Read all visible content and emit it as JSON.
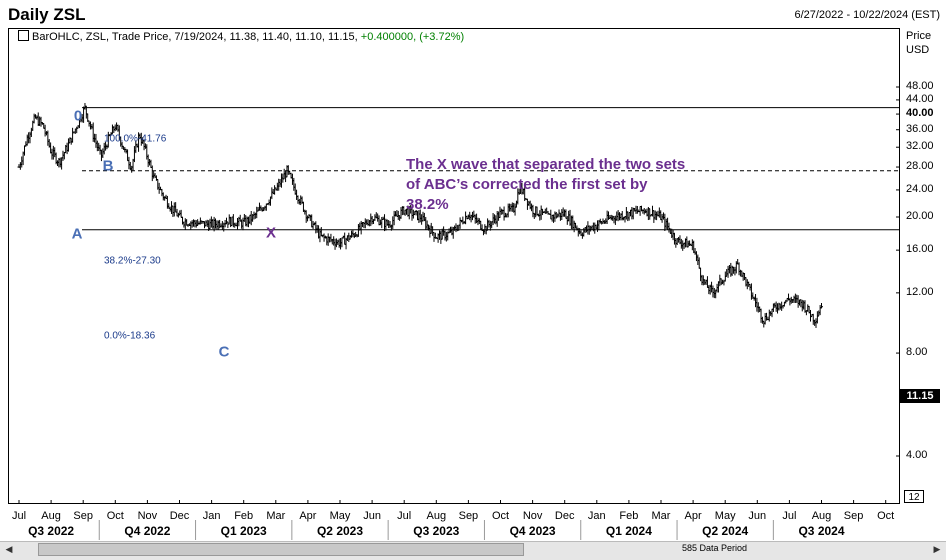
{
  "header": {
    "title": "Daily ZSL",
    "date_range": "6/27/2022 - 10/22/2024 (EST)"
  },
  "legend": {
    "text": "BarOHLC, ZSL, Trade Price, 7/19/2024, 11.38, 11.40, 11.10, 11.15,",
    "change": "+0.400000, (+3.72%)"
  },
  "axis": {
    "unit_line1": "Price",
    "unit_line2": "USD",
    "last_price": "11.15",
    "period_box": "12",
    "data_period": "585 Data Period"
  },
  "annotation": {
    "lines": [
      "The X wave that separated the two sets",
      "of ABC’s corrected the first set by",
      "38.2%"
    ]
  },
  "waves": {
    "zero": "0",
    "a": "A",
    "b": "B",
    "c": "C",
    "x": "X"
  },
  "fib": {
    "level_100": "100.0%-41.76",
    "level_382": "38.2%-27.30",
    "level_0": "0.0%-18.36"
  },
  "colors": {
    "wave_blue": "#4a6fb5",
    "wave_purple": "#6b2f8f",
    "change_green": "#008000"
  },
  "chart_data": {
    "type": "bar",
    "style": "OHLC",
    "symbol": "ZSL",
    "y_scale": "log",
    "ylim": [
      3,
      56
    ],
    "y_ticks": [
      4,
      8,
      12,
      16,
      20,
      24,
      28,
      32,
      36,
      40,
      44,
      48
    ],
    "y_tick_labels": [
      "4.00",
      "8.00",
      "12.00",
      "16.00",
      "20.00",
      "24.00",
      "28.00",
      "32.00",
      "36.00",
      "40.00",
      "44.00",
      "48.00"
    ],
    "x_months": [
      "Jul",
      "Aug",
      "Sep",
      "Oct",
      "Nov",
      "Dec",
      "Jan",
      "Feb",
      "Mar",
      "Apr",
      "May",
      "Jun",
      "Jul",
      "Aug",
      "Sep",
      "Oct",
      "Nov",
      "Dec",
      "Jan",
      "Feb",
      "Mar",
      "Apr",
      "May",
      "Jun",
      "Jul",
      "Aug",
      "Sep",
      "Oct"
    ],
    "x_quarters": [
      "Q3 2022",
      "Q4 2022",
      "Q1 2023",
      "Q2 2023",
      "Q3 2023",
      "Q4 2023",
      "Q1 2024",
      "Q2 2024",
      "Q3 2024"
    ],
    "fib_levels": [
      {
        "pct": 100.0,
        "price": 41.76,
        "style": "solid"
      },
      {
        "pct": 38.2,
        "price": 27.3,
        "style": "dashed"
      },
      {
        "pct": 0.0,
        "price": 18.36,
        "style": "solid"
      }
    ],
    "last_bar": {
      "date": "7/19/2024",
      "open": 11.38,
      "high": 11.4,
      "low": 11.1,
      "close": 11.15,
      "change": 0.4,
      "change_pct": 3.72
    },
    "price_path": [
      [
        0,
        28
      ],
      [
        0.25,
        34
      ],
      [
        0.5,
        39
      ],
      [
        0.75,
        37
      ],
      [
        1.0,
        31
      ],
      [
        1.25,
        29
      ],
      [
        1.5,
        32
      ],
      [
        1.8,
        37
      ],
      [
        2.05,
        41.76
      ],
      [
        2.3,
        35
      ],
      [
        2.55,
        30
      ],
      [
        2.8,
        34
      ],
      [
        3.0,
        37
      ],
      [
        3.3,
        31
      ],
      [
        3.5,
        28
      ],
      [
        3.75,
        35
      ],
      [
        4.0,
        30
      ],
      [
        4.2,
        26
      ],
      [
        4.5,
        23
      ],
      [
        4.8,
        21
      ],
      [
        5.1,
        19.5
      ],
      [
        5.5,
        19.2
      ],
      [
        6.0,
        19
      ],
      [
        6.5,
        19.5
      ],
      [
        7.0,
        19.2
      ],
      [
        7.3,
        20
      ],
      [
        7.7,
        22
      ],
      [
        8.0,
        24
      ],
      [
        8.35,
        27.3
      ],
      [
        8.6,
        24
      ],
      [
        9.0,
        20
      ],
      [
        9.4,
        17.5
      ],
      [
        10.0,
        16.8
      ],
      [
        10.5,
        18
      ],
      [
        11.0,
        20
      ],
      [
        11.5,
        19
      ],
      [
        12.0,
        21
      ],
      [
        12.5,
        20
      ],
      [
        13.0,
        17.5
      ],
      [
        13.5,
        18
      ],
      [
        14.0,
        20.5
      ],
      [
        14.5,
        18.5
      ],
      [
        15.0,
        20.5
      ],
      [
        15.4,
        21
      ],
      [
        15.6,
        24.5
      ],
      [
        16.0,
        21
      ],
      [
        16.5,
        20
      ],
      [
        17.0,
        20.5
      ],
      [
        17.5,
        18
      ],
      [
        18.0,
        19
      ],
      [
        18.5,
        20
      ],
      [
        19.0,
        20.5
      ],
      [
        19.5,
        21
      ],
      [
        20.0,
        20
      ],
      [
        20.5,
        17
      ],
      [
        21.0,
        16.5
      ],
      [
        21.3,
        13
      ],
      [
        21.6,
        12
      ],
      [
        22.0,
        13.5
      ],
      [
        22.4,
        14.5
      ],
      [
        22.8,
        12
      ],
      [
        23.2,
        10
      ],
      [
        23.6,
        11
      ],
      [
        24.0,
        11.5
      ],
      [
        24.4,
        11.2
      ],
      [
        24.8,
        10
      ],
      [
        25.0,
        11.15
      ]
    ]
  }
}
